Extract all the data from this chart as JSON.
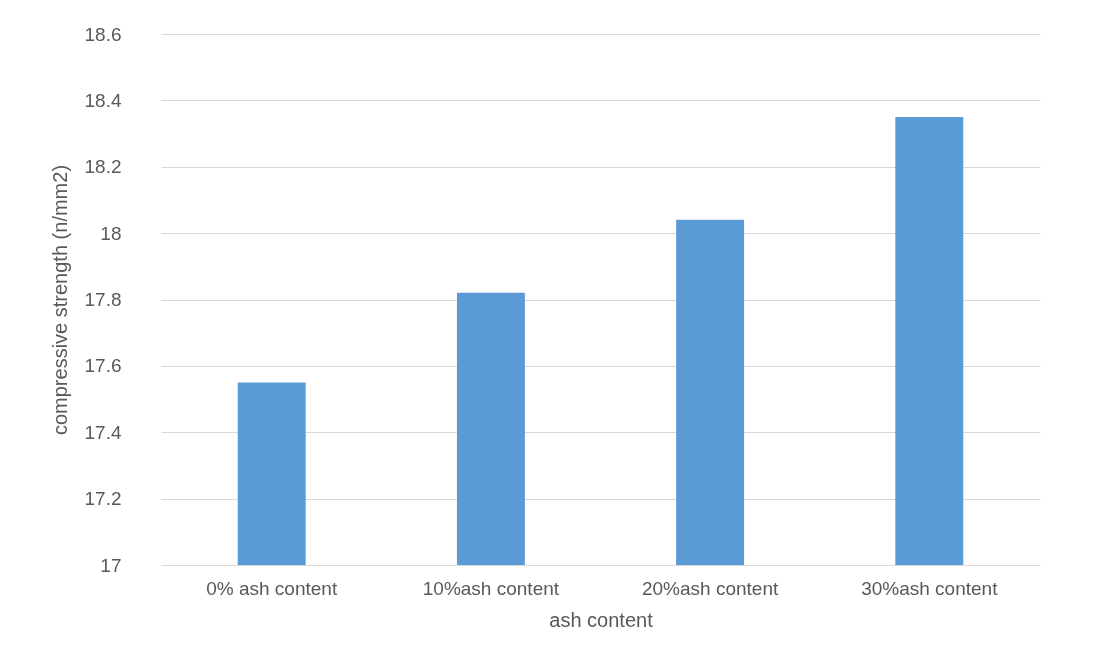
{
  "chart_data": {
    "type": "bar",
    "xlabel": "ash content",
    "ylabel": "compressive strength (n/mm2)",
    "categories": [
      "0% ash content",
      "10%ash content",
      "20%ash content",
      "30%ash content"
    ],
    "values": [
      17.55,
      17.82,
      18.04,
      18.35
    ],
    "color": "#5b9bd5",
    "ylim": [
      17,
      18.6
    ],
    "yticks": [
      17,
      17.2,
      17.4,
      17.6,
      17.8,
      18,
      18.2,
      18.4,
      18.6
    ],
    "grid": "y"
  }
}
